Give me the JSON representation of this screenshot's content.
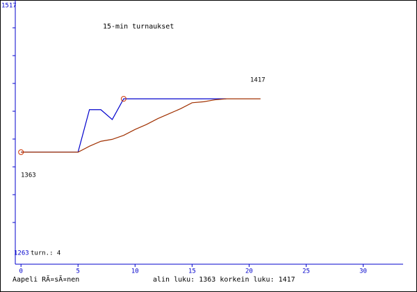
{
  "chart_data": {
    "type": "line",
    "title": "15-min turnaukset",
    "xlim": [
      -0.5,
      33.5
    ],
    "xticks": [
      0,
      5,
      10,
      15,
      20,
      25,
      30
    ],
    "ylim": [
      1263,
      1517
    ],
    "games_label": "turn.: 4",
    "annotations": [
      "1417",
      "1363"
    ],
    "series": [
      {
        "color": "#0000cc",
        "x": [
          0,
          5,
          6,
          7,
          8,
          9,
          18
        ],
        "values": [
          1363,
          1363,
          1406,
          1406,
          1396,
          1417,
          1417
        ]
      },
      {
        "color": "#a03000",
        "x": [
          0,
          5,
          6,
          7,
          8,
          9,
          10,
          11,
          12,
          13,
          14,
          15,
          16,
          17,
          18,
          21
        ],
        "values": [
          1363,
          1363,
          1369,
          1374,
          1376,
          1380,
          1386,
          1391,
          1397,
          1402,
          1407,
          1413,
          1414,
          1416,
          1417,
          1417
        ]
      }
    ],
    "markers": {
      "color": "#cc3300",
      "x": [
        0,
        9
      ],
      "values": [
        1363,
        1417
      ]
    },
    "footer_left": "Aapeli RÃ¤sÃ¤nen",
    "footer_right": "alin luku: 1363  korkein luku: 1417"
  }
}
